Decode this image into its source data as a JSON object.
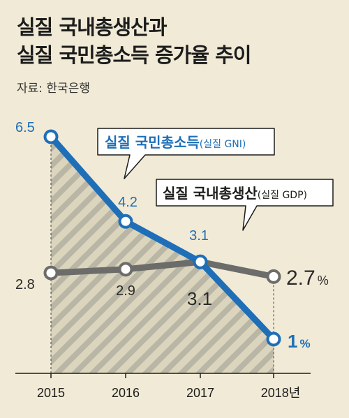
{
  "colors": {
    "background": "#f1ead6",
    "gni": "#1e6fb8",
    "gdp": "#6c6c6a",
    "hatch": "#b9b6a6",
    "text": "#1c1c1c"
  },
  "chart_data": {
    "type": "line",
    "title_line1": "실질 국내총생산과",
    "title_line2": "실질 국민총소득 증가율 추이",
    "source": "자료: 한국은행",
    "categories": [
      "2015",
      "2016",
      "2017",
      "2018"
    ],
    "x_suffix": "년",
    "ylim": [
      0,
      7
    ],
    "series": [
      {
        "key": "gni",
        "name_main": "실질 국민총소득",
        "name_sub": "(실질 GNI)",
        "values": [
          6.5,
          4.2,
          3.1,
          1.0
        ],
        "labels": [
          "6.5",
          "4.2",
          "3.1",
          "1"
        ],
        "last_unit": "%",
        "color": "#1e6fb8"
      },
      {
        "key": "gdp",
        "name_main": "실질 국내총생산",
        "name_sub": "(실질 GDP)",
        "values": [
          2.8,
          2.9,
          3.1,
          2.7
        ],
        "labels": [
          "2.8",
          "2.9",
          "3.1",
          "2.7"
        ],
        "last_unit": "%",
        "color": "#6c6c6a"
      }
    ]
  }
}
